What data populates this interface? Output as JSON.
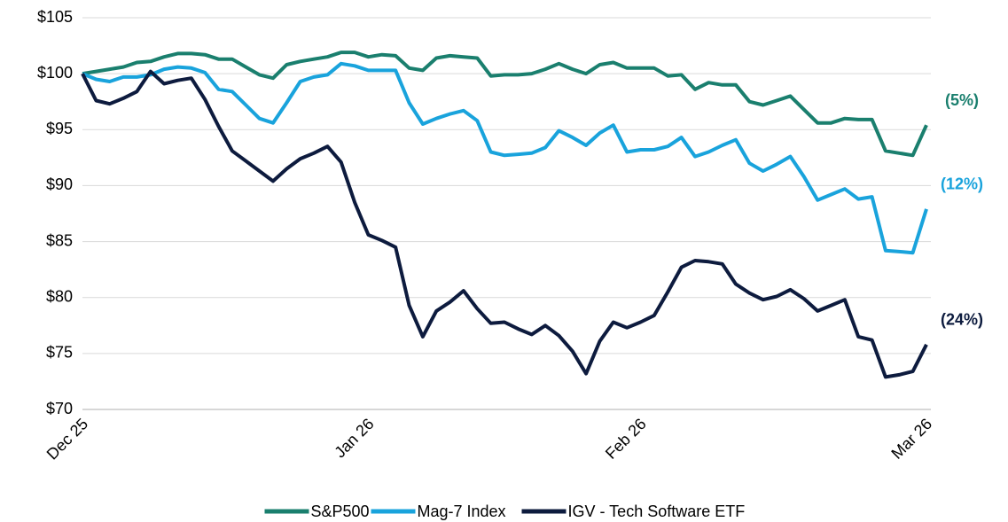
{
  "chart_data": {
    "type": "line",
    "categories": [
      "Dec 25",
      null,
      null,
      null,
      null,
      null,
      null,
      null,
      null,
      null,
      null,
      null,
      null,
      null,
      null,
      null,
      null,
      null,
      null,
      null,
      null,
      "Jan 26",
      null,
      null,
      null,
      null,
      null,
      null,
      null,
      null,
      null,
      null,
      null,
      null,
      null,
      null,
      null,
      null,
      null,
      null,
      null,
      "Feb 26",
      null,
      null,
      null,
      null,
      null,
      null,
      null,
      null,
      null,
      null,
      null,
      null,
      null,
      null,
      null,
      null,
      null,
      null,
      null,
      null,
      "Mar 26"
    ],
    "series": [
      {
        "name": "S&P500",
        "color": "#1a7f6e",
        "end_label": "(5%)",
        "values": [
          100.0,
          100.2,
          100.4,
          100.6,
          101.0,
          101.1,
          101.5,
          101.8,
          101.8,
          101.7,
          101.3,
          101.3,
          100.6,
          99.9,
          99.6,
          100.8,
          101.1,
          101.3,
          101.5,
          101.9,
          101.9,
          101.5,
          101.7,
          101.6,
          100.5,
          100.3,
          101.4,
          101.6,
          101.5,
          101.4,
          99.8,
          99.9,
          99.9,
          100.0,
          100.4,
          100.9,
          100.4,
          100.0,
          100.8,
          101.0,
          100.5,
          100.5,
          100.5,
          99.8,
          99.9,
          98.6,
          99.2,
          99.0,
          99.0,
          97.5,
          97.2,
          97.6,
          98.0,
          96.8,
          95.6,
          95.6,
          96.0,
          95.9,
          95.9,
          93.1,
          92.9,
          92.7,
          95.4
        ]
      },
      {
        "name": "Mag-7 Index",
        "color": "#19a3dc",
        "end_label": "(12%)",
        "values": [
          100.0,
          99.5,
          99.3,
          99.7,
          99.7,
          99.9,
          100.4,
          100.6,
          100.5,
          100.1,
          98.6,
          98.4,
          97.2,
          96.0,
          95.6,
          97.4,
          99.3,
          99.7,
          99.9,
          100.9,
          100.7,
          100.3,
          100.3,
          100.3,
          97.4,
          95.5,
          96.0,
          96.4,
          96.7,
          95.8,
          93.0,
          92.7,
          92.8,
          92.9,
          93.4,
          94.9,
          94.3,
          93.6,
          94.7,
          95.4,
          93.0,
          93.2,
          93.2,
          93.5,
          94.3,
          92.6,
          93.0,
          93.6,
          94.1,
          92.0,
          91.3,
          91.9,
          92.6,
          90.8,
          88.7,
          89.2,
          89.7,
          88.8,
          89.0,
          84.2,
          84.1,
          84.0,
          87.9
        ]
      },
      {
        "name": "IGV - Tech Software ETF",
        "color": "#0d1b3e",
        "end_label": "(24%)",
        "values": [
          100.0,
          97.6,
          97.3,
          97.8,
          98.4,
          100.2,
          99.1,
          99.4,
          99.6,
          97.7,
          95.3,
          93.1,
          92.2,
          91.3,
          90.4,
          91.5,
          92.4,
          92.9,
          93.5,
          92.1,
          88.5,
          85.6,
          85.1,
          84.5,
          79.3,
          76.5,
          78.8,
          79.6,
          80.6,
          79.0,
          77.7,
          77.8,
          77.2,
          76.7,
          77.5,
          76.6,
          75.2,
          73.2,
          76.1,
          77.8,
          77.3,
          77.8,
          78.4,
          80.5,
          82.7,
          83.3,
          83.2,
          83.0,
          81.2,
          80.4,
          79.8,
          80.1,
          80.7,
          79.9,
          78.8,
          79.3,
          79.8,
          76.5,
          76.2,
          72.9,
          73.1,
          73.4,
          75.8
        ]
      }
    ],
    "ylim": [
      70,
      105
    ],
    "yticks": [
      {
        "value": 70,
        "label": "$70"
      },
      {
        "value": 75,
        "label": "$75"
      },
      {
        "value": 80,
        "label": "$80"
      },
      {
        "value": 85,
        "label": "$85"
      },
      {
        "value": 90,
        "label": "$90"
      },
      {
        "value": 95,
        "label": "$95"
      },
      {
        "value": 100,
        "label": "$100"
      },
      {
        "value": 105,
        "label": "$105"
      }
    ],
    "grid": true,
    "legend": "bottom"
  }
}
